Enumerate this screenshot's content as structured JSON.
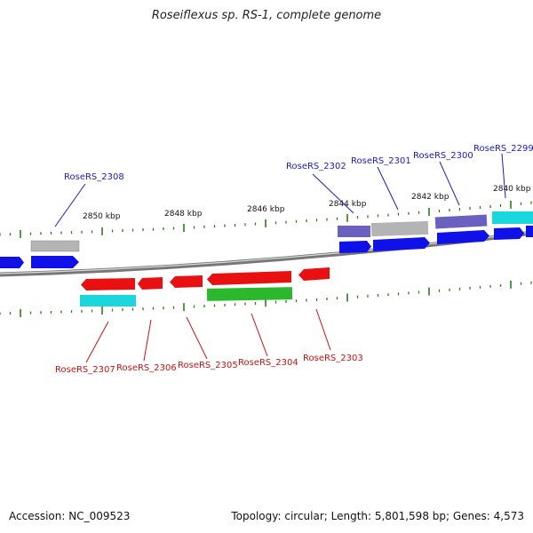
{
  "title": "Roseiflexus sp. RS-1, complete genome",
  "footer": {
    "accession": "Accession: NC_009523",
    "topology": "Topology: circular; Length: 5,801,598 bp; Genes: 4,573"
  },
  "colors": {
    "backbone": "#777777",
    "tick": "#2f7a1e",
    "blue": "#1010e8",
    "gray": "#b4b4b4",
    "purple": "#6a60c0",
    "cyan": "#1ad6dd",
    "red": "#e81010",
    "green": "#2cb82c",
    "label_top": "#1a1acc",
    "label_bottom": "#cc1111"
  },
  "scale_labels": [
    "2850 kbp",
    "2848 kbp",
    "2846 kbp",
    "2844 kbp",
    "2842 kbp",
    "2840 kbp"
  ],
  "gene_labels_top": [
    "RoseRS_2308",
    "RoseRS_2302",
    "RoseRS_2301",
    "RoseRS_2300",
    "RoseRS_2299"
  ],
  "gene_labels_bottom": [
    "RoseRS_2307",
    "RoseRS_2306",
    "RoseRS_2305",
    "RoseRS_2304",
    "RoseRS_2303"
  ]
}
